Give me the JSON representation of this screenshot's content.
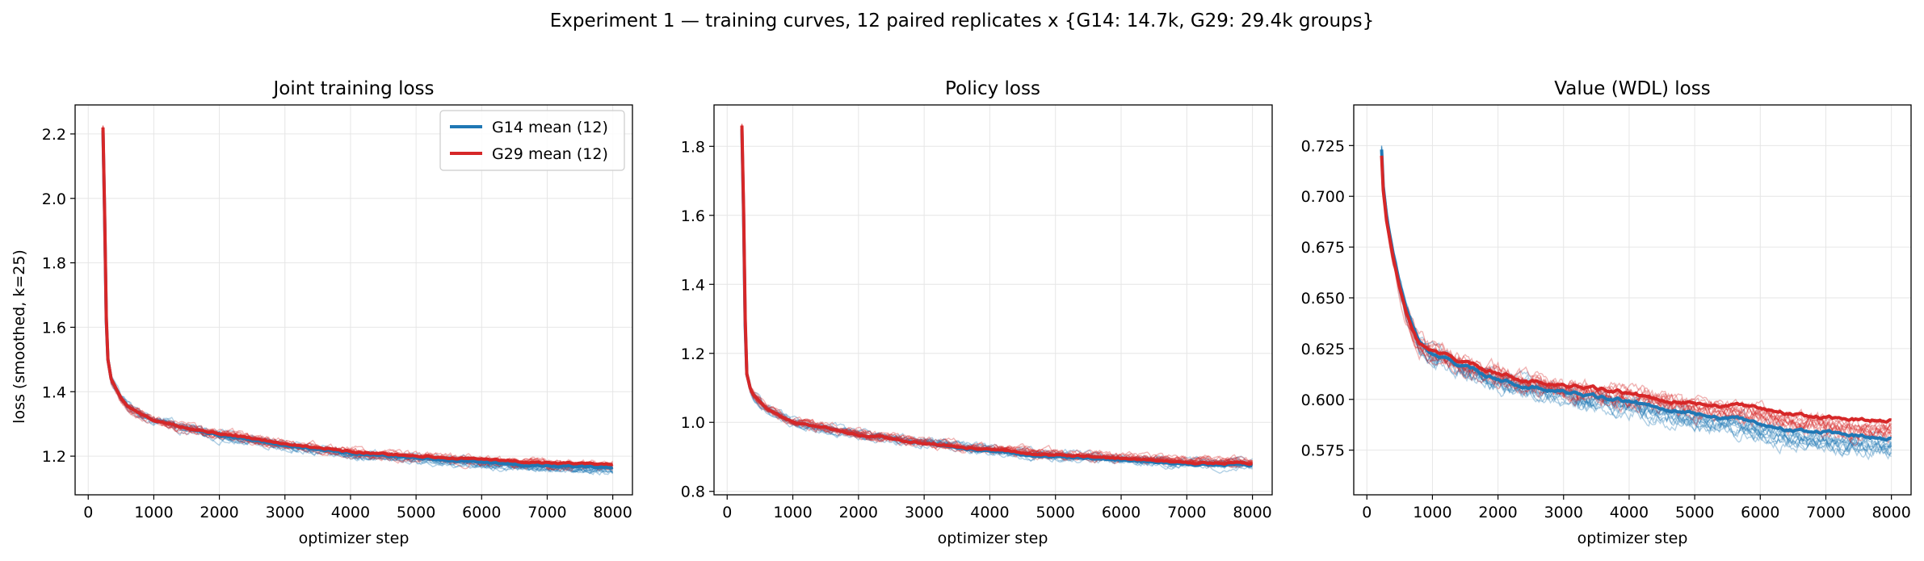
{
  "suptitle": "Experiment 1 — training curves, 12 paired replicates x {G14: 14.7k, G29: 29.4k groups}",
  "colors": {
    "g14": "#1f77b4",
    "g29": "#d62728",
    "grid": "#e6e6e6"
  },
  "chart_data": [
    {
      "type": "line",
      "title": "Joint training loss",
      "xlabel": "optimizer step",
      "ylabel": "loss (smoothed, k=25)",
      "xlim": [
        -200,
        8300
      ],
      "ylim": [
        1.08,
        2.29
      ],
      "xticks": [
        0,
        1000,
        2000,
        3000,
        4000,
        5000,
        6000,
        7000,
        8000
      ],
      "yticks": [
        1.2,
        1.4,
        1.6,
        1.8,
        2.0,
        2.2
      ],
      "ytick_decimals": 1,
      "grid": true,
      "legend": {
        "placement": "upper right",
        "entries": [
          "G14 mean (12)",
          "G29 mean (12)"
        ]
      },
      "replicates": 12,
      "series": [
        {
          "name": "G14 mean (12)",
          "color": "g14",
          "x": [
            225,
            250,
            275,
            300,
            350,
            400,
            500,
            600,
            800,
            1000,
            1500,
            2000,
            3000,
            4000,
            5000,
            6000,
            7000,
            8000
          ],
          "y": [
            2.21,
            1.95,
            1.62,
            1.5,
            1.44,
            1.42,
            1.38,
            1.355,
            1.33,
            1.31,
            1.29,
            1.265,
            1.235,
            1.21,
            1.195,
            1.18,
            1.17,
            1.165
          ]
        },
        {
          "name": "G29 mean (12)",
          "color": "g29",
          "x": [
            225,
            250,
            275,
            300,
            350,
            400,
            500,
            600,
            800,
            1000,
            1500,
            2000,
            3000,
            4000,
            5000,
            6000,
            7000,
            8000
          ],
          "y": [
            2.22,
            1.96,
            1.63,
            1.5,
            1.44,
            1.42,
            1.38,
            1.355,
            1.33,
            1.31,
            1.29,
            1.27,
            1.24,
            1.215,
            1.2,
            1.19,
            1.18,
            1.175
          ]
        }
      ]
    },
    {
      "type": "line",
      "title": "Policy loss",
      "xlabel": "optimizer step",
      "ylabel": "",
      "xlim": [
        -200,
        8300
      ],
      "ylim": [
        0.79,
        1.92
      ],
      "xticks": [
        0,
        1000,
        2000,
        3000,
        4000,
        5000,
        6000,
        7000,
        8000
      ],
      "yticks": [
        0.8,
        1.0,
        1.2,
        1.4,
        1.6,
        1.8
      ],
      "ytick_decimals": 1,
      "grid": true,
      "replicates": 12,
      "series": [
        {
          "name": "",
          "color": "g14",
          "x": [
            225,
            250,
            275,
            300,
            350,
            400,
            500,
            600,
            800,
            1000,
            1500,
            2000,
            3000,
            4000,
            5000,
            6000,
            7000,
            8000
          ],
          "y": [
            1.85,
            1.6,
            1.28,
            1.14,
            1.1,
            1.08,
            1.06,
            1.04,
            1.02,
            1.0,
            0.985,
            0.965,
            0.94,
            0.915,
            0.9,
            0.89,
            0.88,
            0.875
          ]
        },
        {
          "name": "",
          "color": "g29",
          "x": [
            225,
            250,
            275,
            300,
            350,
            400,
            500,
            600,
            800,
            1000,
            1500,
            2000,
            3000,
            4000,
            5000,
            6000,
            7000,
            8000
          ],
          "y": [
            1.86,
            1.62,
            1.3,
            1.14,
            1.1,
            1.08,
            1.06,
            1.04,
            1.02,
            1.0,
            0.985,
            0.965,
            0.94,
            0.92,
            0.905,
            0.895,
            0.885,
            0.88
          ]
        }
      ]
    },
    {
      "type": "line",
      "title": "Value (WDL) loss",
      "xlabel": "optimizer step",
      "ylabel": "",
      "xlim": [
        -200,
        8300
      ],
      "ylim": [
        0.553,
        0.745
      ],
      "xticks": [
        0,
        1000,
        2000,
        3000,
        4000,
        5000,
        6000,
        7000,
        8000
      ],
      "yticks": [
        0.575,
        0.6,
        0.625,
        0.65,
        0.675,
        0.7,
        0.725
      ],
      "ytick_decimals": 3,
      "grid": true,
      "replicates": 12,
      "series": [
        {
          "name": "",
          "color": "g14",
          "x": [
            225,
            250,
            300,
            400,
            500,
            600,
            700,
            800,
            1000,
            1500,
            2000,
            2500,
            3000,
            3500,
            4000,
            4500,
            5000,
            5500,
            6000,
            6500,
            7000,
            7500,
            8000
          ],
          "y": [
            0.723,
            0.705,
            0.69,
            0.672,
            0.657,
            0.645,
            0.636,
            0.628,
            0.622,
            0.616,
            0.61,
            0.606,
            0.604,
            0.601,
            0.599,
            0.596,
            0.593,
            0.591,
            0.588,
            0.585,
            0.584,
            0.582,
            0.581
          ]
        },
        {
          "name": "",
          "color": "g29",
          "x": [
            225,
            250,
            300,
            400,
            500,
            600,
            700,
            800,
            1000,
            1500,
            2000,
            2500,
            3000,
            3500,
            4000,
            4500,
            5000,
            5500,
            6000,
            6500,
            7000,
            7500,
            8000
          ],
          "y": [
            0.72,
            0.703,
            0.688,
            0.67,
            0.655,
            0.643,
            0.634,
            0.627,
            0.624,
            0.618,
            0.613,
            0.609,
            0.607,
            0.605,
            0.603,
            0.6,
            0.598,
            0.597,
            0.596,
            0.593,
            0.591,
            0.59,
            0.59
          ]
        }
      ]
    }
  ]
}
